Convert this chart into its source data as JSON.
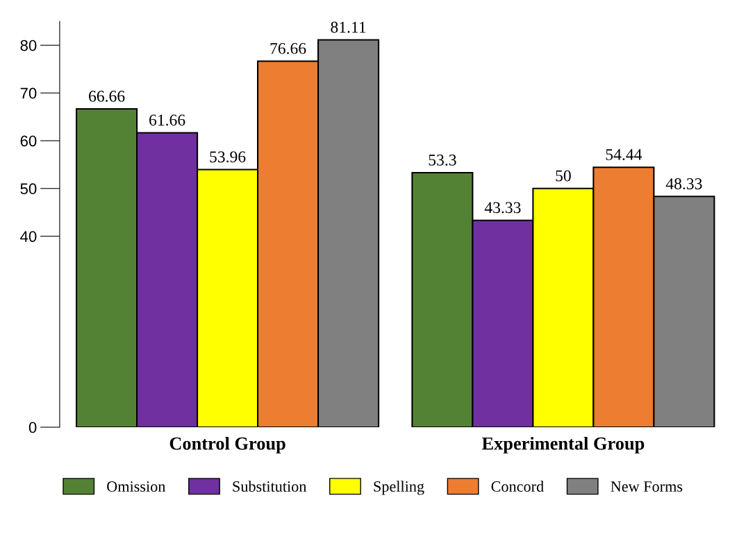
{
  "chart_data": {
    "type": "bar",
    "categories": [
      "Control Group",
      "Experimental Group"
    ],
    "series": [
      {
        "name": "Omission",
        "color": "#548235",
        "values": [
          66.66,
          53.3
        ]
      },
      {
        "name": "Substitution",
        "color": "#7030a0",
        "values": [
          61.66,
          43.33
        ]
      },
      {
        "name": "Spelling",
        "color": "#ffff00",
        "values": [
          53.96,
          50
        ]
      },
      {
        "name": "Concord",
        "color": "#ed7d31",
        "values": [
          76.66,
          54.44
        ]
      },
      {
        "name": "New Forms",
        "color": "#808080",
        "values": [
          81.11,
          48.33
        ]
      }
    ],
    "ylim": [
      0,
      85
    ],
    "yticks": [
      0,
      40,
      50,
      60,
      70,
      80
    ],
    "data_labels": true,
    "legend": "bottom",
    "grid": false
  }
}
